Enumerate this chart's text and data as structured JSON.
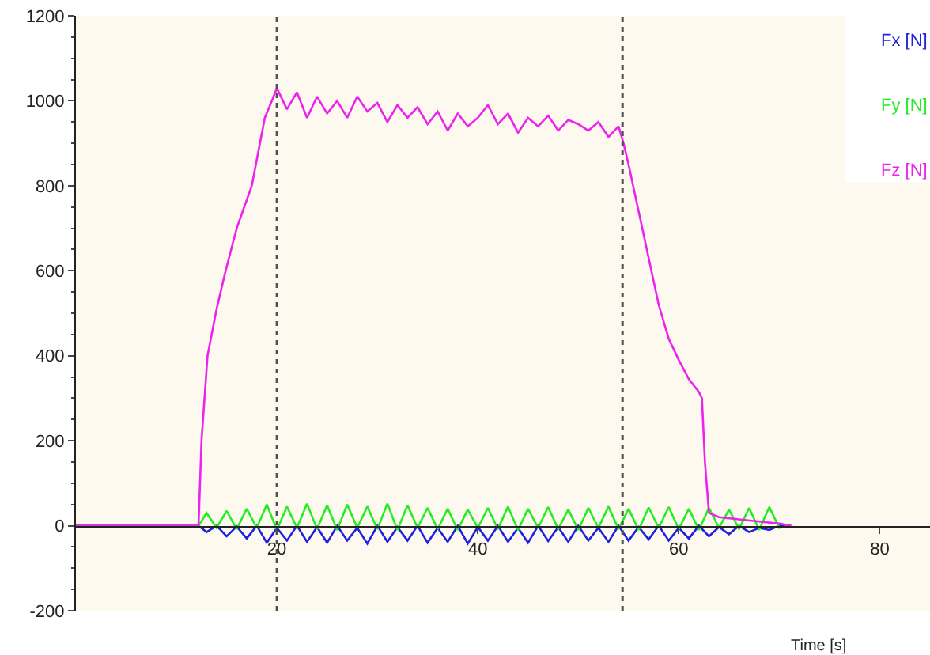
{
  "chart_data": {
    "type": "line",
    "xlabel": "Time [s]",
    "xlim": [
      0,
      85
    ],
    "xticks": [
      20,
      40,
      60,
      80
    ],
    "ylim": [
      -200,
      1200
    ],
    "yticks": [
      -200,
      0,
      200,
      400,
      600,
      800,
      1000,
      1200
    ],
    "grid": false,
    "legend": "top right",
    "marker": "none",
    "line_style": "solid",
    "ref_lines": [
      {
        "axis": "x",
        "value": 20,
        "color": "#505050",
        "line_style": "dotted"
      },
      {
        "axis": "x",
        "value": 54.4,
        "color": "#505050",
        "line_style": "dotted"
      }
    ],
    "series": [
      {
        "name": "Fx [N]",
        "color": "#2020e0",
        "x": [
          0,
          12.2,
          13,
          14,
          15,
          16,
          17,
          18,
          19,
          20,
          21,
          22,
          23,
          24,
          25,
          26,
          27,
          28,
          29,
          30,
          31,
          32,
          33,
          34,
          35,
          36,
          37,
          38,
          39,
          40,
          41,
          42,
          43,
          44,
          45,
          46,
          47,
          48,
          49,
          50,
          51,
          52,
          53,
          54,
          55,
          56,
          57,
          58,
          59,
          60,
          61,
          62,
          63,
          64,
          65,
          66,
          67,
          68,
          69,
          70,
          71
        ],
        "values": [
          0,
          0,
          -15,
          0,
          -25,
          -2,
          -30,
          0,
          -40,
          -5,
          -35,
          0,
          -38,
          -3,
          -40,
          0,
          -35,
          -5,
          -42,
          0,
          -38,
          -3,
          -35,
          0,
          -40,
          -5,
          -38,
          0,
          -42,
          -3,
          -35,
          0,
          -38,
          -5,
          -40,
          0,
          -36,
          -3,
          -38,
          0,
          -35,
          -5,
          -38,
          0,
          -35,
          -3,
          -32,
          0,
          -35,
          -5,
          -30,
          0,
          -25,
          -3,
          -20,
          0,
          -15,
          -5,
          -10,
          0,
          0
        ]
      },
      {
        "name": "Fy [N]",
        "color": "#22ee22",
        "x": [
          0,
          12.2,
          13,
          14,
          15,
          16,
          17,
          18,
          19,
          20,
          21,
          22,
          23,
          24,
          25,
          26,
          27,
          28,
          29,
          30,
          31,
          32,
          33,
          34,
          35,
          36,
          37,
          38,
          39,
          40,
          41,
          42,
          43,
          44,
          45,
          46,
          47,
          48,
          49,
          50,
          51,
          52,
          53,
          54,
          55,
          56,
          57,
          58,
          59,
          60,
          61,
          62,
          63,
          64,
          65,
          66,
          67,
          68,
          69,
          70,
          71
        ],
        "values": [
          0,
          0,
          30,
          -5,
          35,
          -8,
          40,
          -5,
          50,
          -10,
          45,
          -5,
          52,
          -8,
          48,
          -10,
          50,
          -5,
          45,
          -8,
          52,
          -10,
          48,
          -5,
          42,
          -8,
          40,
          -10,
          38,
          -5,
          42,
          -8,
          45,
          -10,
          40,
          -5,
          44,
          -8,
          38,
          -10,
          42,
          -5,
          45,
          -8,
          40,
          -10,
          43,
          -5,
          44,
          -8,
          40,
          -10,
          42,
          -5,
          38,
          -8,
          42,
          -10,
          44,
          -5,
          0
        ]
      },
      {
        "name": "Fz [N]",
        "color": "#ee22ee",
        "x": [
          0,
          5,
          10,
          12.2,
          12.5,
          13.1,
          14,
          14.9,
          16,
          17.5,
          18.8,
          19.5,
          20,
          21,
          22,
          23,
          24,
          25,
          26,
          27,
          28,
          29,
          30,
          31,
          32,
          33,
          34,
          35,
          36,
          37,
          38,
          39,
          40,
          41,
          42,
          43,
          44,
          45,
          46,
          47,
          48,
          49,
          50,
          51,
          52,
          53,
          54,
          54.5,
          55,
          56,
          57,
          58,
          59,
          60,
          61,
          62,
          62.3,
          62.6,
          63,
          64,
          66,
          68,
          70,
          71.2
        ],
        "values": [
          0,
          0,
          0,
          0,
          200,
          400,
          510,
          600,
          700,
          800,
          960,
          1000,
          1030,
          980,
          1020,
          960,
          1010,
          970,
          1000,
          960,
          1010,
          975,
          995,
          950,
          990,
          960,
          985,
          945,
          975,
          930,
          970,
          940,
          960,
          990,
          945,
          970,
          925,
          960,
          940,
          965,
          930,
          955,
          945,
          930,
          950,
          915,
          940,
          900,
          850,
          740,
          630,
          520,
          440,
          390,
          345,
          315,
          300,
          150,
          30,
          20,
          15,
          10,
          5,
          0
        ]
      }
    ]
  }
}
